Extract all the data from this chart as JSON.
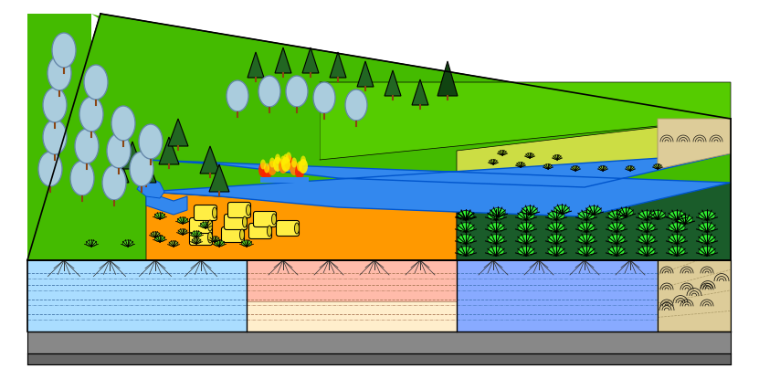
{
  "bg_color": "#ffffff",
  "colors": {
    "bright_green": "#55cc00",
    "mid_green": "#44bb00",
    "lime_yellow": "#ccdd44",
    "blue_river": "#3388ee",
    "orange_field": "#ff9900",
    "yellow_bale": "#ffee44",
    "dark_green_crop": "#1a5c2a",
    "gray_rock": "#888888",
    "gray_dark": "#666666",
    "light_blue_soil": "#aaddff",
    "peach_soil": "#ffbbaa",
    "cream_soil": "#ffeecc",
    "blue_soil": "#88aaff",
    "tan_side": "#ddcc99",
    "forest_green": "#226622",
    "tree_dark": "#114411",
    "oval_fill": "#aaccdd",
    "oval_stroke": "#6688aa",
    "fire_red": "#ff2200",
    "fire_orange": "#ff8800",
    "fire_yellow": "#ffee00",
    "black": "#000000",
    "trunk": "#8B4513"
  },
  "fig_width": 8.31,
  "fig_height": 4.15,
  "dpi": 100
}
